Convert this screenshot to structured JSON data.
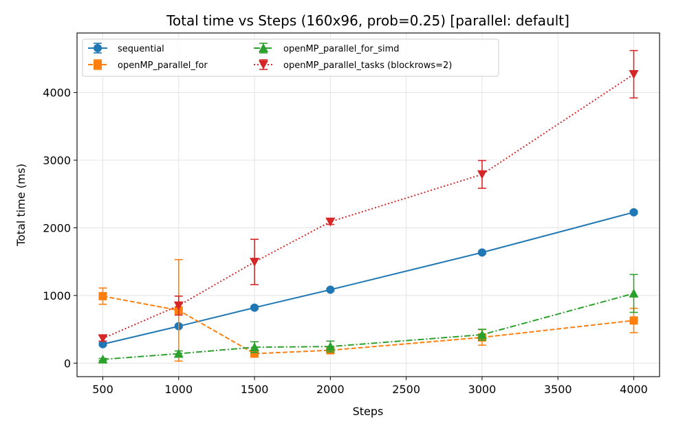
{
  "chart_data": {
    "type": "line",
    "title": "Total time vs Steps (160x96, prob=0.25) [parallel: default]",
    "xlabel": "Steps",
    "ylabel": "Total time (ms)",
    "xlim": [
      330,
      4170
    ],
    "ylim": [
      -200,
      4880
    ],
    "xticks": [
      500,
      1000,
      1500,
      2000,
      2500,
      3000,
      3500,
      4000
    ],
    "yticks": [
      0,
      1000,
      2000,
      3000,
      4000
    ],
    "grid": true,
    "legend_position": "top-left",
    "x": [
      500,
      1000,
      1500,
      2000,
      3000,
      4000
    ],
    "series": [
      {
        "name": "sequential",
        "color": "#1f77b4",
        "linestyle": "solid",
        "marker": "circle",
        "values": [
          280,
          545,
          820,
          1085,
          1635,
          2230
        ],
        "errors": [
          20,
          20,
          20,
          20,
          20,
          20
        ]
      },
      {
        "name": "openMP_parallel_for",
        "color": "#ff7f0e",
        "linestyle": "dashed",
        "marker": "square",
        "values": [
          990,
          780,
          140,
          190,
          380,
          630
        ],
        "errors": [
          120,
          750,
          20,
          40,
          115,
          180
        ]
      },
      {
        "name": "openMP_parallel_for_simd",
        "color": "#2ca02c",
        "linestyle": "dashdot",
        "marker": "triangle-up",
        "values": [
          55,
          140,
          235,
          245,
          420,
          1030
        ],
        "errors": [
          15,
          40,
          80,
          80,
          80,
          280
        ]
      },
      {
        "name": "openMP_parallel_tasks (blockrows=2)",
        "color": "#d62728",
        "linestyle": "dotted",
        "marker": "triangle-down",
        "values": [
          365,
          850,
          1495,
          2090,
          2790,
          4270
        ],
        "errors": [
          40,
          140,
          335,
          40,
          205,
          350
        ]
      }
    ]
  }
}
